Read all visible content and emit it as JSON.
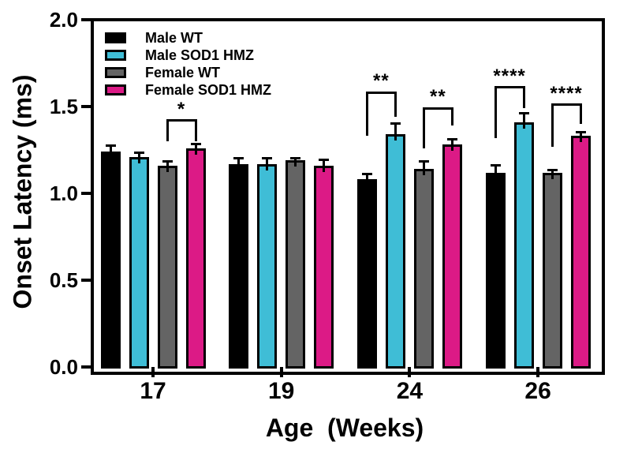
{
  "chart_data": {
    "type": "bar",
    "title": "",
    "xlabel": "Age  (Weeks)",
    "ylabel": "Onset Latency (ms)",
    "categories": [
      "17",
      "19",
      "24",
      "26"
    ],
    "ylim": [
      0.0,
      2.0
    ],
    "yticks": [
      {
        "value": 0.0,
        "label": "0.0"
      },
      {
        "value": 0.5,
        "label": "0.5"
      },
      {
        "value": 1.0,
        "label": "1.0"
      },
      {
        "value": 1.5,
        "label": "1.5"
      },
      {
        "value": 2.0,
        "label": "2.0"
      }
    ],
    "grid": false,
    "legend_position": "top-left-inside",
    "series": [
      {
        "name": "Male WT",
        "color": "#000000",
        "values": [
          1.24,
          1.17,
          1.08,
          1.12
        ],
        "errors": [
          0.04,
          0.04,
          0.04,
          0.05
        ]
      },
      {
        "name": "Male SOD1 HMZ",
        "color": "#3FBDD6",
        "values": [
          1.21,
          1.17,
          1.34,
          1.41
        ],
        "errors": [
          0.03,
          0.04,
          0.07,
          0.06
        ]
      },
      {
        "name": "Female WT",
        "color": "#646464",
        "values": [
          1.16,
          1.19,
          1.14,
          1.12
        ],
        "errors": [
          0.03,
          0.02,
          0.05,
          0.02
        ]
      },
      {
        "name": "Female SOD1 HMZ",
        "color": "#DC1A86",
        "values": [
          1.26,
          1.16,
          1.28,
          1.33
        ],
        "errors": [
          0.03,
          0.04,
          0.04,
          0.03
        ]
      }
    ],
    "significance": [
      {
        "group": 0,
        "from": 2,
        "to": 3,
        "label": "*",
        "line_y": 1.42,
        "left_end": 1.3,
        "right_end": 1.3
      },
      {
        "group": 2,
        "from": 0,
        "to": 1,
        "label": "**",
        "line_y": 1.58,
        "left_end": 1.33,
        "right_end": 1.44
      },
      {
        "group": 2,
        "from": 2,
        "to": 3,
        "label": "**",
        "line_y": 1.49,
        "left_end": 1.26,
        "right_end": 1.39
      },
      {
        "group": 3,
        "from": 0,
        "to": 1,
        "label": "****",
        "line_y": 1.61,
        "left_end": 1.32,
        "right_end": 1.49
      },
      {
        "group": 3,
        "from": 2,
        "to": 3,
        "label": "****",
        "line_y": 1.51,
        "left_end": 1.27,
        "right_end": 1.4
      }
    ]
  }
}
